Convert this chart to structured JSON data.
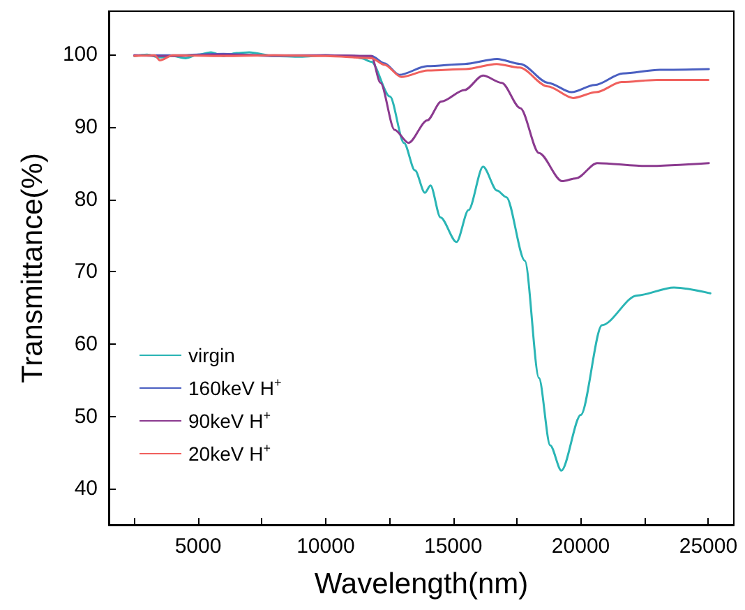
{
  "chart_data": {
    "type": "line",
    "xlabel": "Wavelength(nm)",
    "ylabel": "Transmittance(%)",
    "xlim": [
      1500,
      26000
    ],
    "ylim": [
      35,
      106
    ],
    "xticks": [
      {
        "value": 2500,
        "label": null
      },
      5000,
      {
        "value": 7500,
        "label": null
      },
      10000,
      {
        "value": 12500,
        "label": null
      },
      15000,
      {
        "value": 17500,
        "label": null
      },
      20000,
      {
        "value": 22500,
        "label": null
      },
      25000
    ],
    "yticks": [
      40,
      50,
      60,
      70,
      80,
      90,
      100
    ],
    "grid": false,
    "legend": "bottom left",
    "marker": "none",
    "line_style": "solid",
    "series": [
      {
        "name": "virgin",
        "color": "#2ab5b5",
        "x": [
          2500,
          3000,
          3500,
          4000,
          4500,
          5000,
          5500,
          6000,
          6500,
          7000,
          8000,
          9000,
          10000,
          11000,
          11400,
          11790,
          12520,
          13070,
          13500,
          13890,
          14110,
          14500,
          15130,
          15600,
          16170,
          16720,
          17080,
          17810,
          18360,
          18800,
          19240,
          20000,
          20830,
          22200,
          23650,
          25080
        ],
        "values": [
          99.8,
          100,
          99.6,
          99.8,
          99.5,
          100,
          100.3,
          99.8,
          100.2,
          100.3,
          99.8,
          99.7,
          99.9,
          99.8,
          99.5,
          99,
          94.2,
          87.8,
          84,
          80.9,
          81.9,
          77.5,
          74.1,
          78.5,
          84.5,
          81.2,
          80.3,
          71.5,
          55.3,
          46,
          42.5,
          50.2,
          62.6,
          66.7,
          67.8,
          67.0
        ]
      },
      {
        "name": "160keV H$^{+}$",
        "color": "#4a5fc1",
        "x": [
          2500,
          4000,
          6000,
          8000,
          10000,
          11800,
          12300,
          12890,
          13980,
          15440,
          16720,
          17630,
          18720,
          19640,
          20550,
          21650,
          23100,
          25020
        ],
        "values": [
          99.9,
          99.9,
          100.1,
          99.8,
          99.9,
          99.8,
          98.8,
          97.2,
          98.4,
          98.7,
          99.4,
          98.7,
          96.1,
          94.8,
          95.8,
          97.4,
          97.9,
          98.0
        ]
      },
      {
        "name": "90keV H$^{+}$",
        "color": "#8b3a8f",
        "x": [
          2500,
          4000,
          6000,
          8000,
          10000,
          11790,
          12150,
          12700,
          13250,
          13980,
          14530,
          15440,
          16170,
          16900,
          17630,
          18360,
          19270,
          19820,
          20640,
          22560,
          25020
        ],
        "values": [
          99.9,
          99.8,
          100,
          99.9,
          99.9,
          99.8,
          96.1,
          89.6,
          87.8,
          90.9,
          93.5,
          95.1,
          97.1,
          96.1,
          92.6,
          86.4,
          82.5,
          82.9,
          85.0,
          84.6,
          85.0
        ]
      },
      {
        "name": "20keV H$^{+}$",
        "color": "#f0605d",
        "x": [
          2500,
          3300,
          3500,
          4000,
          6000,
          8000,
          10000,
          11800,
          12300,
          12970,
          14000,
          15500,
          16700,
          17600,
          18700,
          19700,
          20600,
          21600,
          23000,
          25000
        ],
        "values": [
          99.8,
          99.9,
          99.2,
          99.9,
          99.8,
          99.9,
          99.8,
          99.5,
          98.6,
          96.9,
          97.8,
          98.0,
          98.7,
          98.2,
          95.6,
          94.0,
          94.8,
          96.2,
          96.5,
          96.5
        ]
      }
    ]
  }
}
